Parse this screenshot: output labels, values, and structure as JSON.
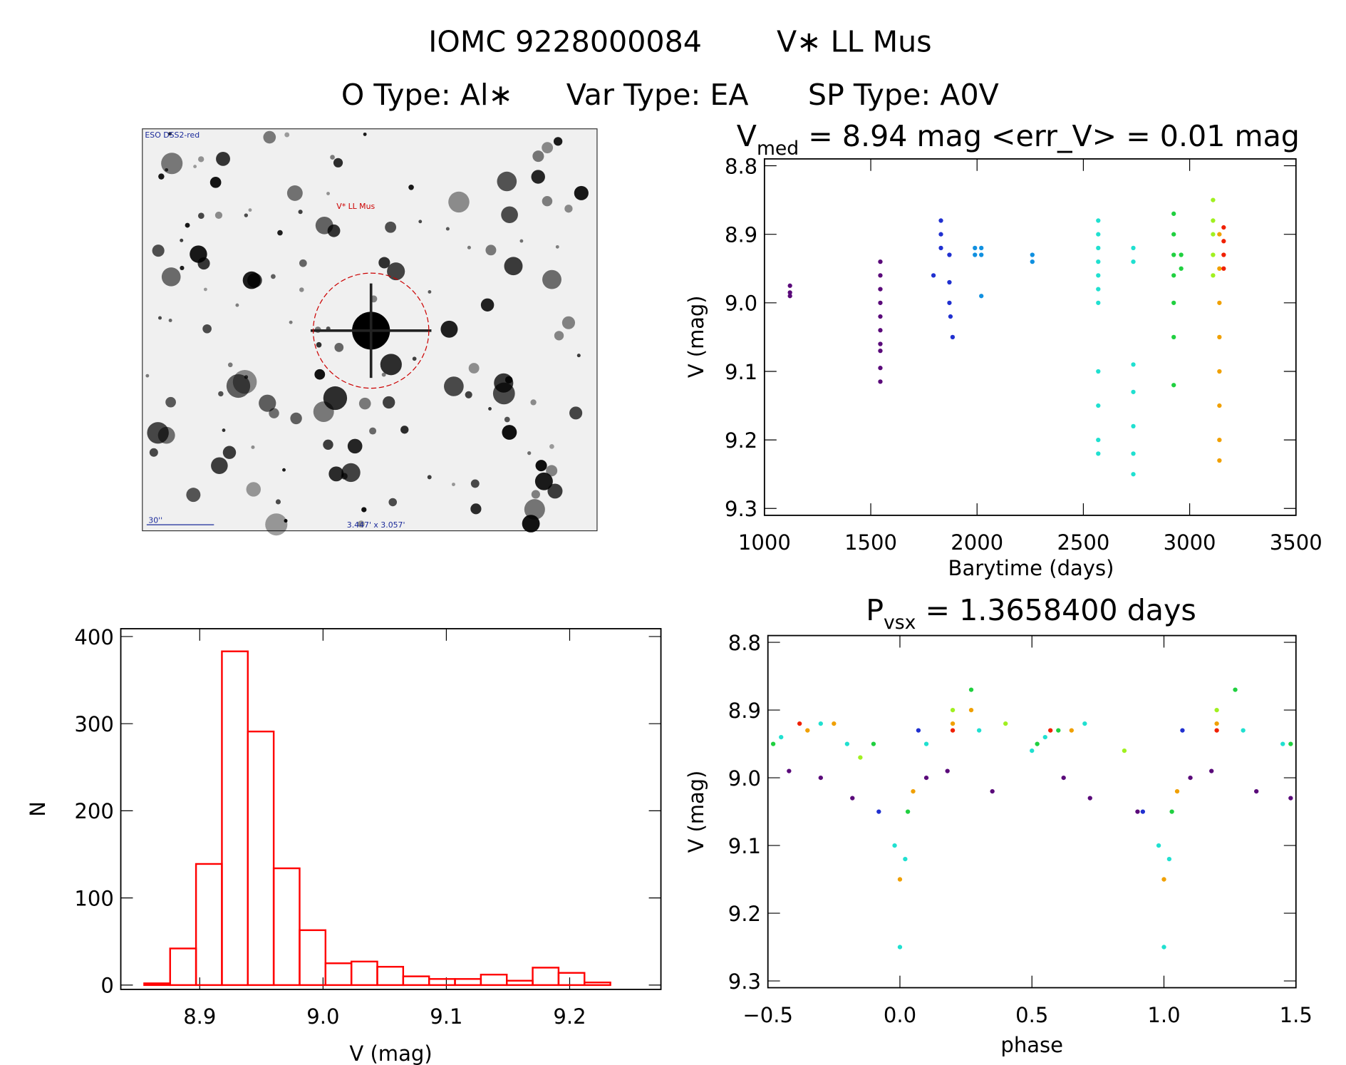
{
  "header": {
    "id": "IOMC 9228000084",
    "name": "V∗ LL Mus",
    "otype": "O Type: Al∗",
    "vartype": "Var Type: EA",
    "sptype": "SP Type: A0V"
  },
  "image": {
    "survey": "ESO DSS2-red",
    "target": "V* LL Mus",
    "scale": "30''",
    "fov": "3.447' x 3.057'"
  },
  "chart_data": [
    {
      "type": "scatter",
      "title": {
        "base": "V",
        "subscript": "med",
        "rest": " = 8.94 mag <err_V> = 0.01 mag"
      },
      "x_label": "Barytime (days)",
      "y_label": "V (mag)",
      "xlim": [
        1000,
        3500
      ],
      "xticks": [
        1000,
        1500,
        2000,
        2500,
        3000,
        3500
      ],
      "ylim": [
        9.31,
        8.79
      ],
      "yticks": [
        8.8,
        8.9,
        {
          "value": 9,
          "label": "9.0"
        },
        9.1,
        9.2,
        9.3
      ],
      "series": [
        {
          "color": "#5a0a7a",
          "x": [
            1120,
            1120,
            1120,
            1545,
            1545,
            1545,
            1545,
            1545,
            1545,
            1545,
            1545,
            1545,
            1545
          ],
          "values": [
            8.975,
            8.985,
            8.99,
            8.94,
            8.96,
            8.98,
            9.0,
            9.02,
            9.04,
            9.06,
            9.07,
            9.095,
            9.115
          ]
        },
        {
          "color": "#2030d0",
          "x": [
            1795,
            1830,
            1830,
            1830,
            1870,
            1870,
            1870,
            1875,
            1885
          ],
          "values": [
            8.96,
            8.88,
            8.9,
            8.92,
            8.93,
            8.97,
            9.0,
            9.02,
            9.05
          ]
        },
        {
          "color": "#1090e0",
          "x": [
            1990,
            1990,
            2020,
            2020,
            2020,
            2260,
            2260
          ],
          "values": [
            8.92,
            8.93,
            8.92,
            8.93,
            8.99,
            8.93,
            8.94
          ]
        },
        {
          "color": "#20e0d0",
          "x": [
            2570,
            2570,
            2570,
            2570,
            2570,
            2570,
            2570,
            2570,
            2570,
            2570,
            2570,
            2735,
            2735,
            2735,
            2735,
            2735,
            2735,
            2735
          ],
          "values": [
            8.88,
            8.9,
            8.92,
            8.94,
            8.96,
            8.98,
            9.0,
            9.1,
            9.15,
            9.2,
            9.22,
            8.92,
            8.94,
            9.09,
            9.13,
            9.18,
            9.22,
            9.25
          ]
        },
        {
          "color": "#20d040",
          "x": [
            2925,
            2925,
            2925,
            2925,
            2925,
            2925,
            2925,
            2960,
            2960
          ],
          "values": [
            8.87,
            8.9,
            8.93,
            8.96,
            9.0,
            9.05,
            9.12,
            8.93,
            8.95
          ]
        },
        {
          "color": "#a0f020",
          "x": [
            3110,
            3110,
            3110,
            3110,
            3110
          ],
          "values": [
            8.85,
            8.88,
            8.9,
            8.93,
            8.96
          ]
        },
        {
          "color": "#f0a000",
          "x": [
            3140,
            3140,
            3140,
            3140,
            3140,
            3140,
            3140,
            3140
          ],
          "values": [
            8.9,
            8.95,
            9.0,
            9.05,
            9.1,
            9.15,
            9.2,
            9.23
          ]
        },
        {
          "color": "#f02000",
          "x": [
            3160,
            3160,
            3160,
            3160
          ],
          "values": [
            8.89,
            8.91,
            8.93,
            8.95
          ]
        }
      ]
    },
    {
      "type": "histogram",
      "x_label": "V (mag)",
      "y_label": "N",
      "color": "#ff0000",
      "bins": [
        8.855,
        8.876,
        8.897,
        8.918,
        8.939,
        8.96,
        8.981,
        9.002,
        9.023,
        9.044,
        9.065,
        9.086,
        9.107,
        9.128,
        9.149,
        9.17,
        9.191,
        9.212,
        9.233
      ],
      "values": [
        2,
        42,
        139,
        383,
        291,
        134,
        63,
        25,
        27,
        21,
        10,
        7,
        7,
        12,
        5,
        20,
        14,
        3
      ],
      "xlim": [
        8.836,
        9.274
      ],
      "xticks": [
        8.9,
        {
          "value": 9,
          "label": "9.0"
        },
        9.1,
        9.2
      ],
      "ylim": [
        -5,
        409
      ],
      "yticks": [
        0,
        100,
        200,
        300,
        400
      ]
    },
    {
      "type": "scatter",
      "title": {
        "base": "P",
        "subscript": "vsx",
        "rest": " = 1.3658400 days"
      },
      "x_label": "phase",
      "y_label": "V (mag)",
      "xlim": [
        -0.5,
        1.5
      ],
      "xticks": [
        {
          "value": -0.5,
          "label": "−0.5"
        },
        {
          "value": 0,
          "label": "0.0"
        },
        0.5,
        {
          "value": 1,
          "label": "1.0"
        },
        1.5
      ],
      "ylim": [
        9.31,
        8.79
      ],
      "yticks": [
        8.8,
        8.9,
        {
          "value": 9,
          "label": "9.0"
        },
        9.1,
        9.2,
        9.3
      ],
      "series": [
        {
          "color": "#20e0d0",
          "x": [
            -0.45,
            -0.3,
            -0.2,
            -0.02,
            0.0,
            0.02,
            0.1,
            0.3,
            0.5,
            0.55,
            0.7,
            0.98,
            1.0,
            1.02,
            1.3,
            1.45
          ],
          "values": [
            8.94,
            8.92,
            8.95,
            9.1,
            9.25,
            9.12,
            8.95,
            8.93,
            8.96,
            8.94,
            8.92,
            9.1,
            9.25,
            9.12,
            8.93,
            8.95
          ]
        },
        {
          "color": "#f0a000",
          "x": [
            -0.35,
            -0.25,
            0.0,
            0.05,
            0.2,
            0.27,
            0.65,
            1.0,
            1.05,
            1.2
          ],
          "values": [
            8.93,
            8.92,
            9.15,
            9.02,
            8.92,
            8.9,
            8.93,
            9.15,
            9.02,
            8.92
          ]
        },
        {
          "color": "#20d040",
          "x": [
            -0.48,
            -0.1,
            0.03,
            0.27,
            0.52,
            0.6,
            1.03,
            1.27,
            1.48
          ],
          "values": [
            8.95,
            8.95,
            9.05,
            8.87,
            8.95,
            8.93,
            9.05,
            8.87,
            8.95
          ]
        },
        {
          "color": "#a0f020",
          "x": [
            -0.15,
            0.2,
            0.4,
            0.85,
            1.2
          ],
          "values": [
            8.97,
            8.9,
            8.92,
            8.96,
            8.9
          ]
        },
        {
          "color": "#5a0a7a",
          "x": [
            -0.42,
            -0.3,
            -0.18,
            0.1,
            0.18,
            0.35,
            0.62,
            0.72,
            0.9,
            1.1,
            1.18,
            1.35,
            1.48
          ],
          "values": [
            8.99,
            9.0,
            9.03,
            9.0,
            8.99,
            9.02,
            9.0,
            9.03,
            9.05,
            9.0,
            8.99,
            9.02,
            9.03
          ]
        },
        {
          "color": "#2030d0",
          "x": [
            -0.08,
            0.07,
            0.92,
            1.07
          ],
          "values": [
            9.05,
            8.93,
            9.05,
            8.93
          ]
        },
        {
          "color": "#f02000",
          "x": [
            -0.38,
            0.2,
            0.57,
            1.2
          ],
          "values": [
            8.92,
            8.93,
            8.93,
            8.93
          ]
        }
      ]
    }
  ]
}
